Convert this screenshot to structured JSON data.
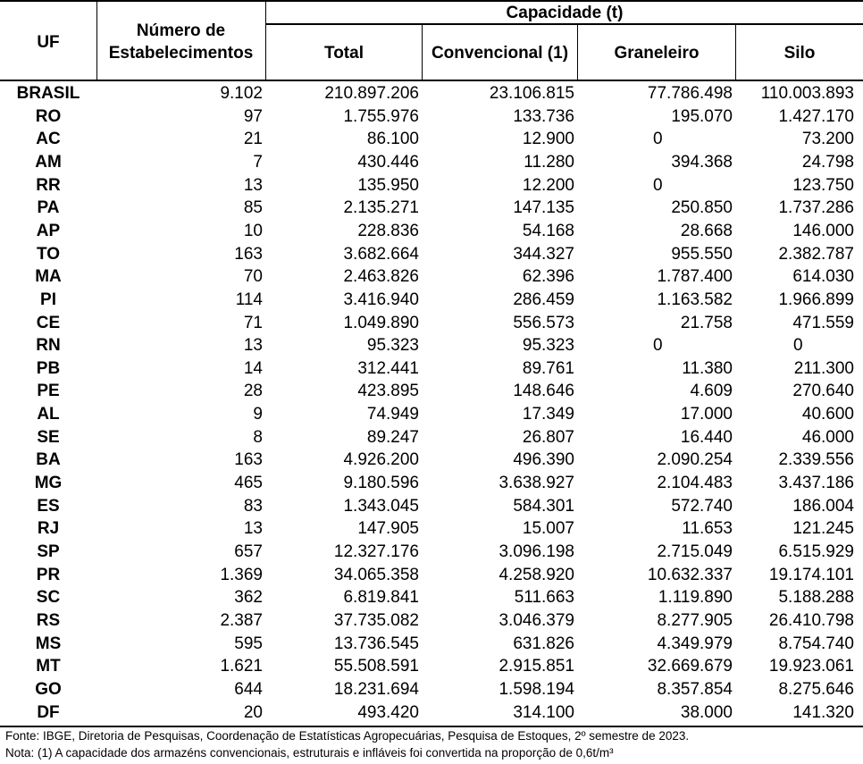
{
  "header": {
    "uf": "UF",
    "estab_line1": "Número de",
    "estab_line2": "Estabelecimentos",
    "capacidade": "Capacidade (t)",
    "total": "Total",
    "convencional": "Convencional (1)",
    "graneleiro": "Graneleiro",
    "silo": "Silo"
  },
  "rows": [
    {
      "uf": "BRASIL",
      "estab": "9.102",
      "total": "210.897.206",
      "conv": "23.106.815",
      "gran": "77.786.498",
      "silo": "110.003.893"
    },
    {
      "uf": "RO",
      "estab": "97",
      "total": "1.755.976",
      "conv": "133.736",
      "gran": "195.070",
      "silo": "1.427.170"
    },
    {
      "uf": "AC",
      "estab": "21",
      "total": "86.100",
      "conv": "12.900",
      "gran": "0",
      "silo": "73.200"
    },
    {
      "uf": "AM",
      "estab": "7",
      "total": "430.446",
      "conv": "11.280",
      "gran": "394.368",
      "silo": "24.798"
    },
    {
      "uf": "RR",
      "estab": "13",
      "total": "135.950",
      "conv": "12.200",
      "gran": "0",
      "silo": "123.750"
    },
    {
      "uf": "PA",
      "estab": "85",
      "total": "2.135.271",
      "conv": "147.135",
      "gran": "250.850",
      "silo": "1.737.286"
    },
    {
      "uf": "AP",
      "estab": "10",
      "total": "228.836",
      "conv": "54.168",
      "gran": "28.668",
      "silo": "146.000"
    },
    {
      "uf": "TO",
      "estab": "163",
      "total": "3.682.664",
      "conv": "344.327",
      "gran": "955.550",
      "silo": "2.382.787"
    },
    {
      "uf": "MA",
      "estab": "70",
      "total": "2.463.826",
      "conv": "62.396",
      "gran": "1.787.400",
      "silo": "614.030"
    },
    {
      "uf": "PI",
      "estab": "114",
      "total": "3.416.940",
      "conv": "286.459",
      "gran": "1.163.582",
      "silo": "1.966.899"
    },
    {
      "uf": "CE",
      "estab": "71",
      "total": "1.049.890",
      "conv": "556.573",
      "gran": "21.758",
      "silo": "471.559"
    },
    {
      "uf": "RN",
      "estab": "13",
      "total": "95.323",
      "conv": "95.323",
      "gran": "0",
      "silo": "0"
    },
    {
      "uf": "PB",
      "estab": "14",
      "total": "312.441",
      "conv": "89.761",
      "gran": "11.380",
      "silo": "211.300"
    },
    {
      "uf": "PE",
      "estab": "28",
      "total": "423.895",
      "conv": "148.646",
      "gran": "4.609",
      "silo": "270.640"
    },
    {
      "uf": "AL",
      "estab": "9",
      "total": "74.949",
      "conv": "17.349",
      "gran": "17.000",
      "silo": "40.600"
    },
    {
      "uf": "SE",
      "estab": "8",
      "total": "89.247",
      "conv": "26.807",
      "gran": "16.440",
      "silo": "46.000"
    },
    {
      "uf": "BA",
      "estab": "163",
      "total": "4.926.200",
      "conv": "496.390",
      "gran": "2.090.254",
      "silo": "2.339.556"
    },
    {
      "uf": "MG",
      "estab": "465",
      "total": "9.180.596",
      "conv": "3.638.927",
      "gran": "2.104.483",
      "silo": "3.437.186"
    },
    {
      "uf": "ES",
      "estab": "83",
      "total": "1.343.045",
      "conv": "584.301",
      "gran": "572.740",
      "silo": "186.004"
    },
    {
      "uf": "RJ",
      "estab": "13",
      "total": "147.905",
      "conv": "15.007",
      "gran": "11.653",
      "silo": "121.245"
    },
    {
      "uf": "SP",
      "estab": "657",
      "total": "12.327.176",
      "conv": "3.096.198",
      "gran": "2.715.049",
      "silo": "6.515.929"
    },
    {
      "uf": "PR",
      "estab": "1.369",
      "total": "34.065.358",
      "conv": "4.258.920",
      "gran": "10.632.337",
      "silo": "19.174.101"
    },
    {
      "uf": "SC",
      "estab": "362",
      "total": "6.819.841",
      "conv": "511.663",
      "gran": "1.119.890",
      "silo": "5.188.288"
    },
    {
      "uf": "RS",
      "estab": "2.387",
      "total": "37.735.082",
      "conv": "3.046.379",
      "gran": "8.277.905",
      "silo": "26.410.798"
    },
    {
      "uf": "MS",
      "estab": "595",
      "total": "13.736.545",
      "conv": "631.826",
      "gran": "4.349.979",
      "silo": "8.754.740"
    },
    {
      "uf": "MT",
      "estab": "1.621",
      "total": "55.508.591",
      "conv": "2.915.851",
      "gran": "32.669.679",
      "silo": "19.923.061"
    },
    {
      "uf": "GO",
      "estab": "644",
      "total": "18.231.694",
      "conv": "1.598.194",
      "gran": "8.357.854",
      "silo": "8.275.646"
    },
    {
      "uf": "DF",
      "estab": "20",
      "total": "493.420",
      "conv": "314.100",
      "gran": "38.000",
      "silo": "141.320"
    }
  ],
  "footer": {
    "fonte": "Fonte: IBGE, Diretoria de Pesquisas, Coordenação de Estatísticas Agropecuárias, Pesquisa de Estoques, 2º semestre de 2023.",
    "nota": "Nota: (1) A capacidade dos armazéns convencionais, estruturais e infláveis foi convertida na proporção de 0,6t/m³"
  }
}
